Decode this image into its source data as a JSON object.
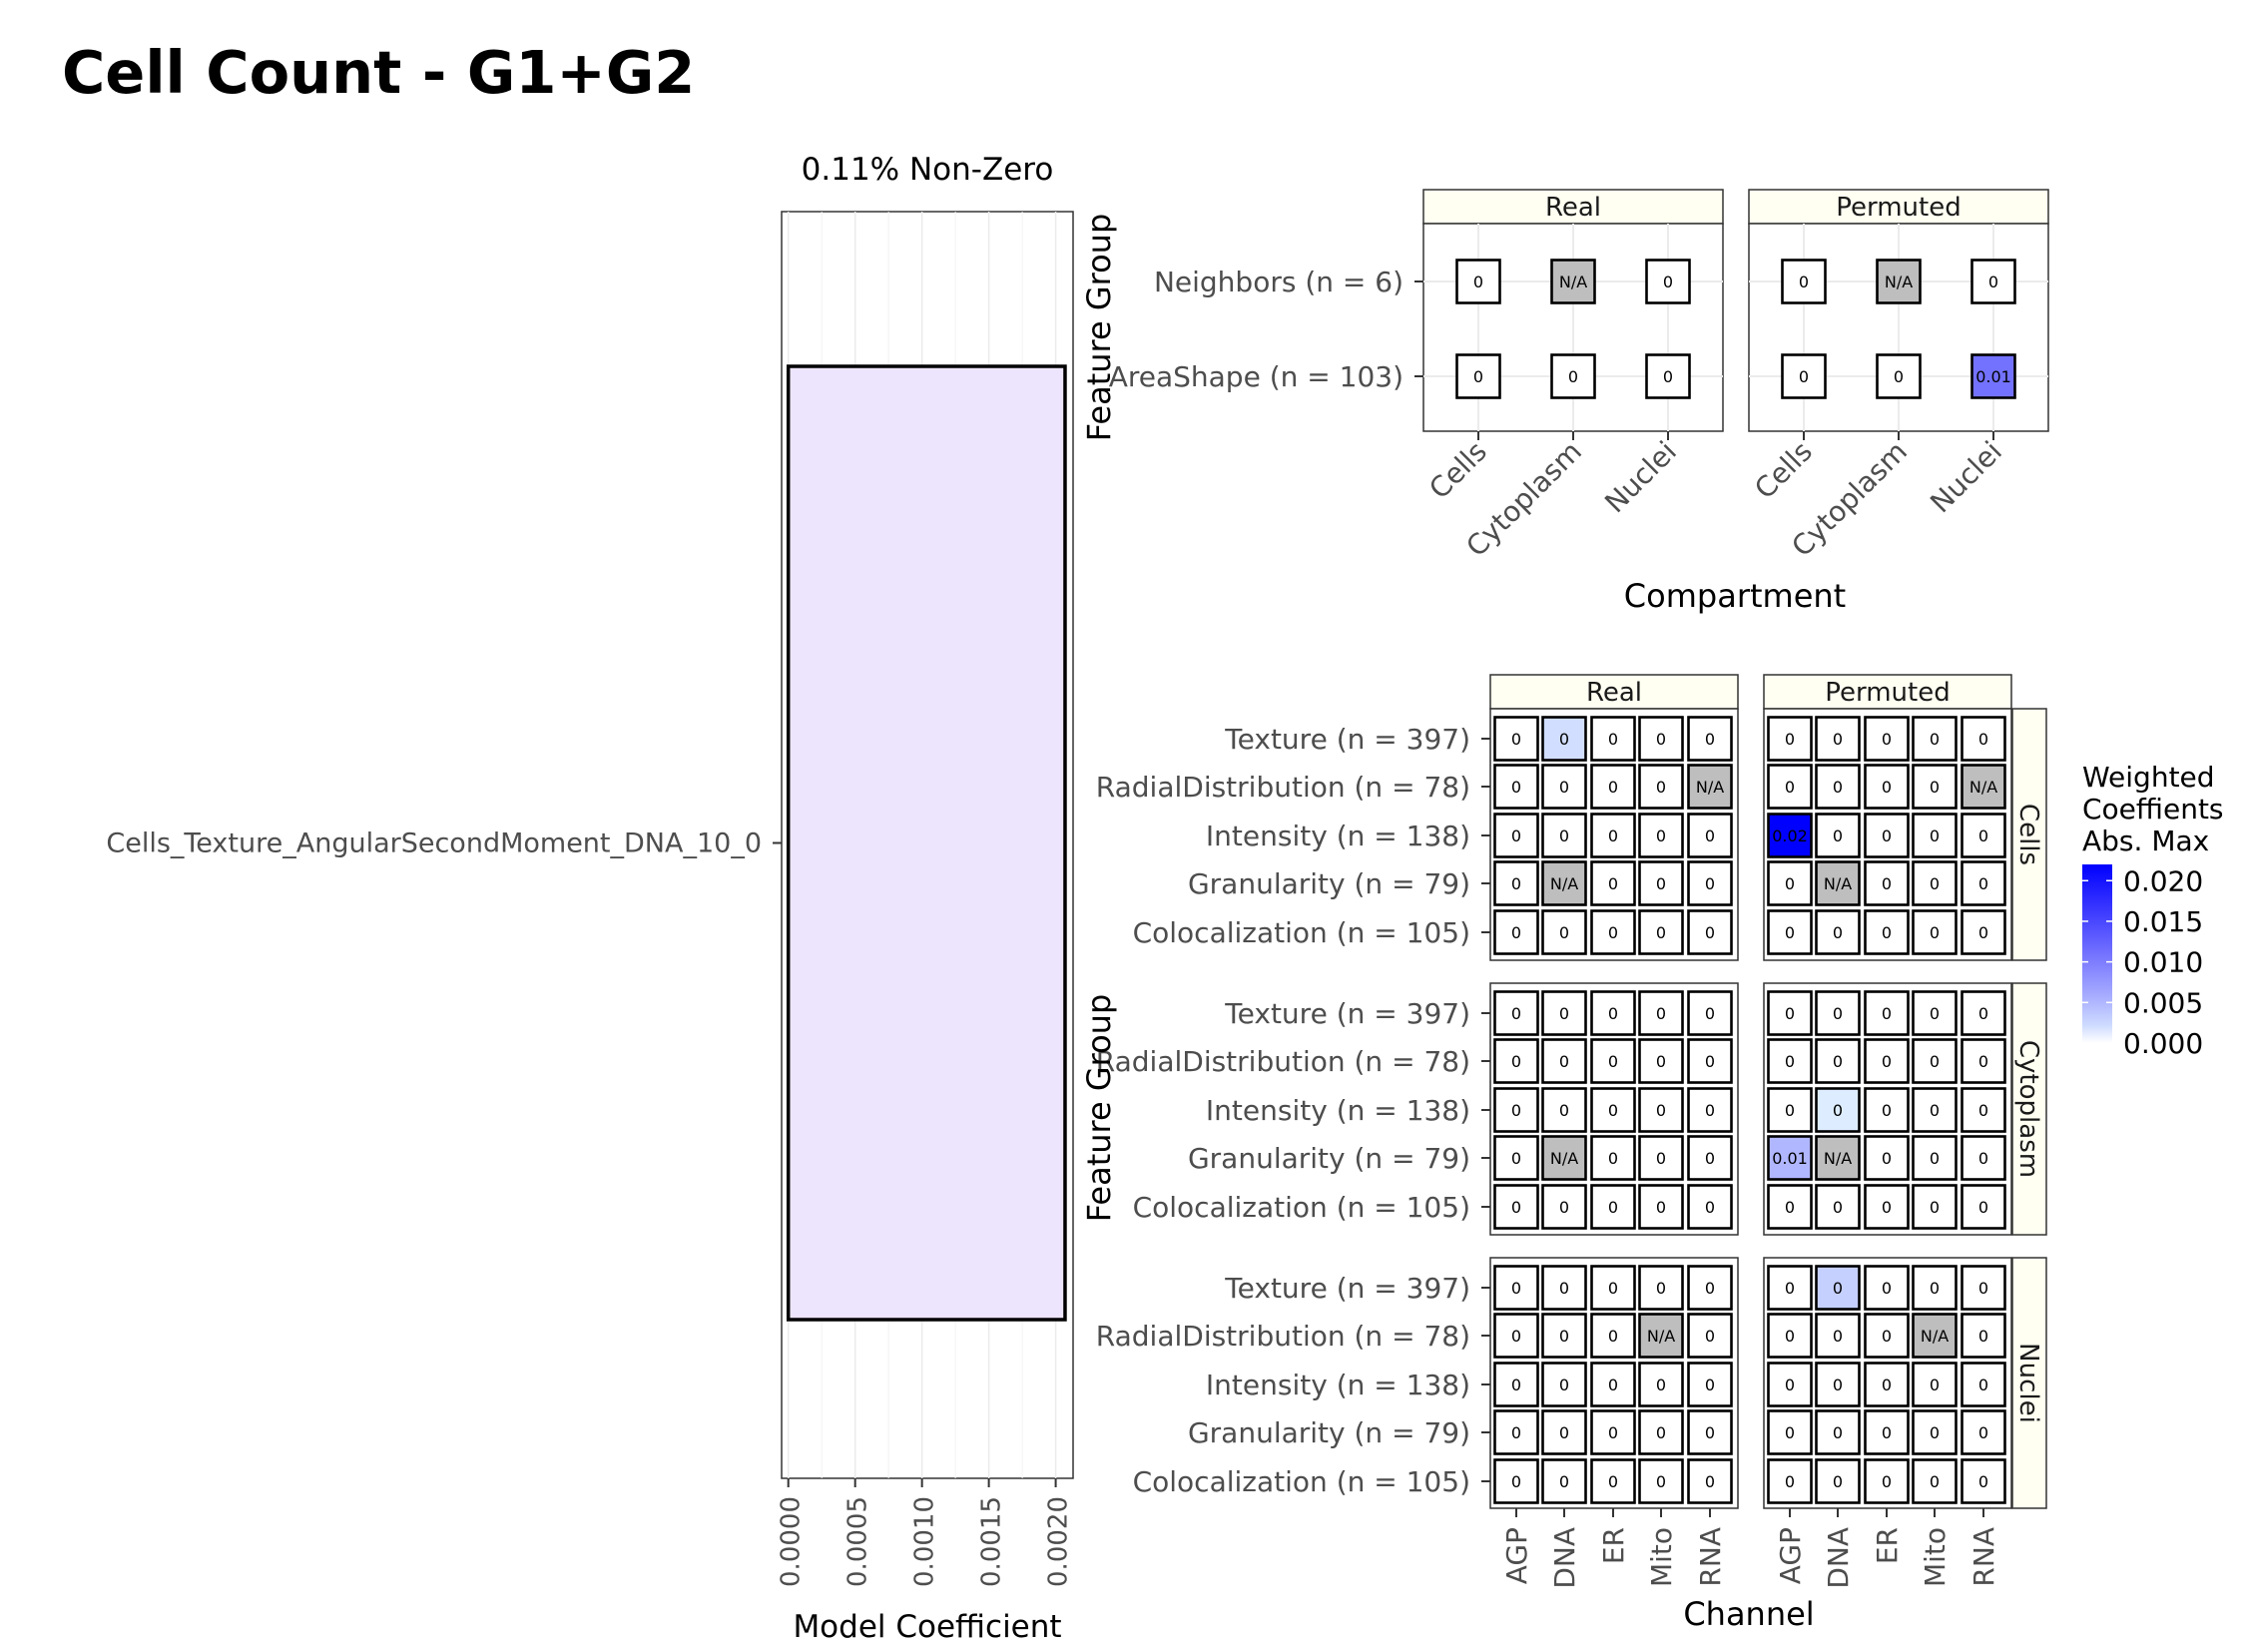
{
  "title": "Cell Count - G1+G2",
  "chart_data": [
    {
      "type": "bar",
      "orientation": "horizontal",
      "subtitle": "0.11% Non-Zero",
      "categories": [
        "Cells_Texture_AngularSecondMoment_DNA_10_0"
      ],
      "values": [
        0.00207
      ],
      "xlabel": "Model Coefficient",
      "ylabel": "",
      "xlim": [
        -5e-05,
        0.00213
      ],
      "ticks": [
        "0.0000",
        "0.0005",
        "0.0010",
        "0.0015",
        "0.0020"
      ],
      "bar_fill": "#ede5fd",
      "grid": true
    },
    {
      "type": "heatmap",
      "xlabel": "Compartment",
      "ylabel": "Feature Group",
      "facets": [
        "Real",
        "Permuted"
      ],
      "columns": [
        "Cells",
        "Cytoplasm",
        "Nuclei"
      ],
      "rows": [
        "Neighbors (n = 6)",
        "AreaShape (n = 103)"
      ],
      "cells": {
        "Real": [
          [
            "0",
            "N/A",
            "0"
          ],
          [
            "0",
            "0",
            "0"
          ]
        ],
        "Permuted": [
          [
            "0",
            "N/A",
            "0"
          ],
          [
            "0",
            "0",
            "0.01"
          ]
        ]
      },
      "values": {
        "Real": [
          [
            0,
            null,
            0
          ],
          [
            0,
            0,
            0
          ]
        ],
        "Permuted": [
          [
            0,
            null,
            0
          ],
          [
            0,
            0,
            0.011
          ]
        ]
      }
    },
    {
      "type": "heatmap",
      "xlabel": "Channel",
      "ylabel": "Feature Group",
      "facets": [
        "Real",
        "Permuted"
      ],
      "strips": [
        "Cells",
        "Cytoplasm",
        "Nuclei"
      ],
      "columns": [
        "AGP",
        "DNA",
        "ER",
        "Mito",
        "RNA"
      ],
      "rows": [
        "Texture (n = 397)",
        "RadialDistribution (n = 78)",
        "Intensity (n = 138)",
        "Granularity (n = 79)",
        "Colocalization (n = 105)"
      ],
      "cells": {
        "Cells": {
          "Real": [
            [
              "0",
              "0",
              "0",
              "0",
              "0"
            ],
            [
              "0",
              "0",
              "0",
              "0",
              "N/A"
            ],
            [
              "0",
              "0",
              "0",
              "0",
              "0"
            ],
            [
              "0",
              "N/A",
              "0",
              "0",
              "0"
            ],
            [
              "0",
              "0",
              "0",
              "0",
              "0"
            ]
          ],
          "Permuted": [
            [
              "0",
              "0",
              "0",
              "0",
              "0"
            ],
            [
              "0",
              "0",
              "0",
              "0",
              "N/A"
            ],
            [
              "0.02",
              "0",
              "0",
              "0",
              "0"
            ],
            [
              "0",
              "N/A",
              "0",
              "0",
              "0"
            ],
            [
              "0",
              "0",
              "0",
              "0",
              "0"
            ]
          ]
        },
        "Cytoplasm": {
          "Real": [
            [
              "0",
              "0",
              "0",
              "0",
              "0"
            ],
            [
              "0",
              "0",
              "0",
              "0",
              "0"
            ],
            [
              "0",
              "0",
              "0",
              "0",
              "0"
            ],
            [
              "0",
              "N/A",
              "0",
              "0",
              "0"
            ],
            [
              "0",
              "0",
              "0",
              "0",
              "0"
            ]
          ],
          "Permuted": [
            [
              "0",
              "0",
              "0",
              "0",
              "0"
            ],
            [
              "0",
              "0",
              "0",
              "0",
              "0"
            ],
            [
              "0",
              "0",
              "0",
              "0",
              "0"
            ],
            [
              "0.01",
              "N/A",
              "0",
              "0",
              "0"
            ],
            [
              "0",
              "0",
              "0",
              "0",
              "0"
            ]
          ]
        },
        "Nuclei": {
          "Real": [
            [
              "0",
              "0",
              "0",
              "0",
              "0"
            ],
            [
              "0",
              "0",
              "0",
              "N/A",
              "0"
            ],
            [
              "0",
              "0",
              "0",
              "0",
              "0"
            ],
            [
              "0",
              "0",
              "0",
              "0",
              "0"
            ],
            [
              "0",
              "0",
              "0",
              "0",
              "0"
            ]
          ],
          "Permuted": [
            [
              "0",
              "0",
              "0",
              "0",
              "0"
            ],
            [
              "0",
              "0",
              "0",
              "N/A",
              "0"
            ],
            [
              "0",
              "0",
              "0",
              "0",
              "0"
            ],
            [
              "0",
              "0",
              "0",
              "0",
              "0"
            ],
            [
              "0",
              "0",
              "0",
              "0",
              "0"
            ]
          ]
        }
      },
      "values": {
        "Cells": {
          "Real": [
            [
              0,
              0.002,
              0,
              0,
              0
            ],
            [
              0,
              0,
              0,
              0,
              null
            ],
            [
              0,
              0,
              0,
              0,
              0
            ],
            [
              0,
              null,
              0,
              0,
              0
            ],
            [
              0,
              0,
              0,
              0,
              0
            ]
          ],
          "Permuted": [
            [
              0,
              0,
              0,
              0,
              0
            ],
            [
              0,
              0,
              0,
              0,
              null
            ],
            [
              0.022,
              0,
              0,
              0,
              0
            ],
            [
              0,
              null,
              0,
              0,
              0
            ],
            [
              0,
              0,
              0,
              0,
              0
            ]
          ]
        },
        "Cytoplasm": {
          "Real": [
            [
              0,
              0,
              0,
              0,
              0
            ],
            [
              0,
              0,
              0,
              0,
              0
            ],
            [
              0,
              0,
              0,
              0,
              0
            ],
            [
              0,
              null,
              0,
              0,
              0
            ],
            [
              0,
              0,
              0,
              0,
              0
            ]
          ],
          "Permuted": [
            [
              0,
              0,
              0,
              0,
              0
            ],
            [
              0,
              0,
              0,
              0,
              0
            ],
            [
              0,
              0.001,
              0,
              0,
              0
            ],
            [
              0.005,
              null,
              0,
              0,
              0
            ],
            [
              0,
              0,
              0,
              0,
              0
            ]
          ]
        },
        "Nuclei": {
          "Real": [
            [
              0,
              0,
              0,
              0,
              0
            ],
            [
              0,
              0,
              0,
              null,
              0
            ],
            [
              0,
              0,
              0,
              0,
              0
            ],
            [
              0,
              0,
              0,
              0,
              0
            ],
            [
              0,
              0,
              0,
              0,
              0
            ]
          ],
          "Permuted": [
            [
              0,
              0.003,
              0,
              0,
              0
            ],
            [
              0,
              0,
              0,
              null,
              0
            ],
            [
              0,
              0,
              0,
              0,
              0
            ],
            [
              0,
              0,
              0,
              0,
              0
            ],
            [
              0,
              0,
              0,
              0,
              0
            ]
          ]
        }
      },
      "legend": {
        "title": [
          "Weighted",
          "Coeffients",
          "Abs. Max"
        ],
        "ticks": [
          "0.020",
          "0.015",
          "0.010",
          "0.005",
          "0.000"
        ],
        "tick_values": [
          0.02,
          0.015,
          0.01,
          0.005,
          0
        ],
        "range": [
          0,
          0.022
        ],
        "low_color": "#ffffff",
        "high_color": "#0000ff",
        "position": "right"
      }
    }
  ],
  "colors": {
    "strip_fill": "#fffff2",
    "na_fill": "#bebebe",
    "grid": "#ebebeb"
  }
}
